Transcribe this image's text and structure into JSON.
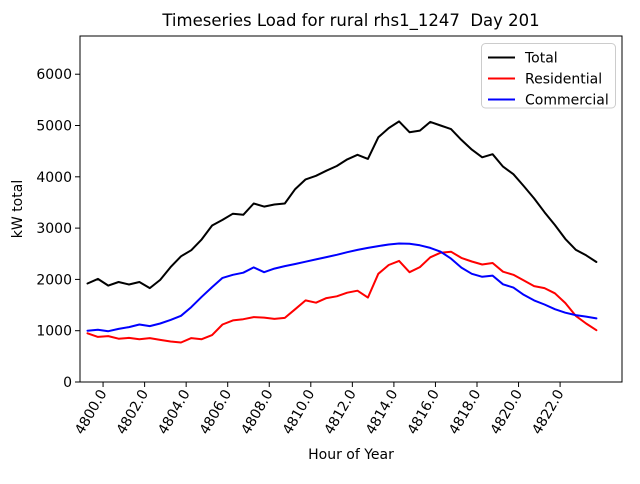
{
  "chart_data": {
    "type": "line",
    "title": "Timeseries Load for rural rhs1_1247  Day 201",
    "xlabel": "Hour of Year",
    "ylabel": "kW total",
    "xlim": [
      4798.89,
      4824.98
    ],
    "ylim": [
      0,
      6745
    ],
    "grid": false,
    "legend_position": "upper right",
    "x_ticks": [
      {
        "value": 4800,
        "label": "4800.0"
      },
      {
        "value": 4802,
        "label": "4802.0"
      },
      {
        "value": 4804,
        "label": "4804.0"
      },
      {
        "value": 4806,
        "label": "4806.0"
      },
      {
        "value": 4808,
        "label": "4808.0"
      },
      {
        "value": 4810,
        "label": "4810.0"
      },
      {
        "value": 4812,
        "label": "4812.0"
      },
      {
        "value": 4814,
        "label": "4814.0"
      },
      {
        "value": 4816,
        "label": "4816.0"
      },
      {
        "value": 4818,
        "label": "4818.0"
      },
      {
        "value": 4820,
        "label": "4820.0"
      },
      {
        "value": 4822,
        "label": "4822.0"
      }
    ],
    "y_ticks": [
      {
        "value": 0,
        "label": "0"
      },
      {
        "value": 1000,
        "label": "1000"
      },
      {
        "value": 2000,
        "label": "2000"
      },
      {
        "value": 3000,
        "label": "3000"
      },
      {
        "value": 4000,
        "label": "4000"
      },
      {
        "value": 5000,
        "label": "5000"
      },
      {
        "value": 6000,
        "label": "6000"
      }
    ],
    "x": [
      4799.25,
      4799.75,
      4800.25,
      4800.75,
      4801.25,
      4801.75,
      4802.25,
      4802.75,
      4803.25,
      4803.75,
      4804.25,
      4804.75,
      4805.25,
      4805.75,
      4806.25,
      4806.75,
      4807.25,
      4807.75,
      4808.25,
      4808.75,
      4809.25,
      4809.75,
      4810.25,
      4810.75,
      4811.25,
      4811.75,
      4812.25,
      4812.75,
      4813.25,
      4813.75,
      4814.25,
      4814.75,
      4815.25,
      4815.75,
      4816.25,
      4816.75,
      4817.25,
      4817.75,
      4818.25,
      4818.75,
      4819.25,
      4819.75,
      4820.25,
      4820.75,
      4821.25,
      4821.75,
      4822.25,
      4822.75,
      4823.25,
      4823.75
    ],
    "series": [
      {
        "name": "Total",
        "color": "#000000",
        "values": [
          1920,
          2010,
          1880,
          1950,
          1900,
          1950,
          1830,
          1990,
          2240,
          2450,
          2570,
          2780,
          3050,
          3160,
          3280,
          3260,
          3480,
          3420,
          3460,
          3480,
          3760,
          3950,
          4020,
          4120,
          4210,
          4340,
          4430,
          4350,
          4770,
          4950,
          5080,
          4870,
          4900,
          5070,
          5000,
          4930,
          4720,
          4530,
          4380,
          4440,
          4200,
          4050,
          3820,
          3580,
          3310,
          3060,
          2790,
          2580,
          2470,
          2340
        ]
      },
      {
        "name": "Residential",
        "color": "#ff0000",
        "values": [
          950,
          880,
          895,
          845,
          860,
          835,
          855,
          820,
          790,
          770,
          855,
          835,
          915,
          1120,
          1200,
          1225,
          1265,
          1255,
          1230,
          1250,
          1420,
          1590,
          1545,
          1635,
          1670,
          1740,
          1780,
          1645,
          2110,
          2280,
          2360,
          2140,
          2240,
          2430,
          2520,
          2540,
          2420,
          2350,
          2290,
          2320,
          2150,
          2090,
          1980,
          1870,
          1830,
          1730,
          1540,
          1290,
          1140,
          1010
        ]
      },
      {
        "name": "Commercial",
        "color": "#0000ff",
        "values": [
          1000,
          1020,
          990,
          1035,
          1070,
          1120,
          1090,
          1140,
          1210,
          1290,
          1460,
          1660,
          1850,
          2030,
          2090,
          2130,
          2235,
          2140,
          2210,
          2260,
          2300,
          2345,
          2390,
          2435,
          2480,
          2530,
          2575,
          2615,
          2650,
          2680,
          2700,
          2695,
          2665,
          2615,
          2540,
          2405,
          2230,
          2110,
          2050,
          2075,
          1905,
          1840,
          1700,
          1590,
          1510,
          1420,
          1350,
          1305,
          1275,
          1240
        ]
      }
    ]
  },
  "colors": {
    "background": "#ffffff",
    "frame": "#000000",
    "legend_border": "#cccccc",
    "legend_background": "#ffffff"
  }
}
